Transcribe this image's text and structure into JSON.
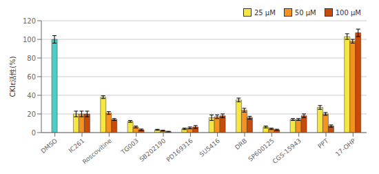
{
  "chart_data": {
    "type": "bar",
    "categories": [
      "DMSO",
      "IC261",
      "Roscovitine",
      "TG003",
      "SB202190",
      "PD169316",
      "SU5416",
      "DRB",
      "SP600125",
      "CGS-15943",
      "PPT",
      "17-OHP"
    ],
    "ylabel": "CKIε活性(%)",
    "ylim": [
      0,
      120
    ],
    "yticks": [
      0,
      20,
      40,
      60,
      80,
      100,
      120
    ],
    "grid": true,
    "legend": "upper right",
    "series": [
      {
        "name": "25 μM",
        "color": "#f5e642",
        "values": [
          null,
          20,
          38,
          12,
          3,
          4,
          16,
          35,
          6,
          14,
          27,
          103
        ],
        "errors": [
          null,
          3,
          1.5,
          1.0,
          0.5,
          0.8,
          3,
          2,
          1,
          1,
          2,
          3
        ]
      },
      {
        "name": "50 μM",
        "color": "#f5931e",
        "colors": [
          "#4ecdc4",
          "#f5931e",
          "#f5931e",
          "#f5931e",
          "#f5931e",
          "#f5931e",
          "#f5931e",
          "#f5931e",
          "#f5931e",
          "#f5931e",
          "#f5931e",
          "#f5931e"
        ],
        "values": [
          100,
          20,
          21,
          6,
          2,
          5,
          17,
          24,
          4,
          14,
          20,
          98
        ],
        "errors": [
          4,
          3,
          1.5,
          1.0,
          0.5,
          1.0,
          2,
          2,
          0.8,
          1,
          1.5,
          2
        ]
      },
      {
        "name": "100 μM",
        "color": "#c94b0a",
        "values": [
          null,
          20,
          14,
          3,
          1,
          6,
          18,
          16,
          3,
          18,
          7,
          107
        ],
        "errors": [
          null,
          3,
          1.0,
          0.8,
          0.4,
          1.5,
          2,
          1.5,
          0.6,
          2,
          1.2,
          4
        ]
      }
    ]
  }
}
